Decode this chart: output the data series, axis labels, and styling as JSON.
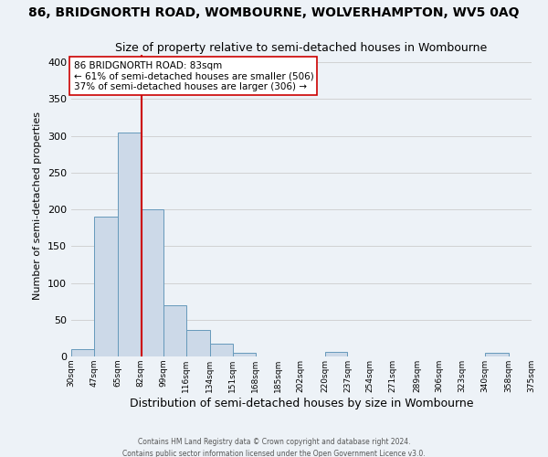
{
  "title": "86, BRIDGNORTH ROAD, WOMBOURNE, WOLVERHAMPTON, WV5 0AQ",
  "subtitle": "Size of property relative to semi-detached houses in Wombourne",
  "xlabel": "Distribution of semi-detached houses by size in Wombourne",
  "ylabel": "Number of semi-detached properties",
  "footer_line1": "Contains HM Land Registry data © Crown copyright and database right 2024.",
  "footer_line2": "Contains public sector information licensed under the Open Government Licence v3.0.",
  "bin_edges": [
    30,
    47,
    65,
    82,
    99,
    116,
    134,
    151,
    168,
    185,
    202,
    220,
    237,
    254,
    271,
    289,
    306,
    323,
    340,
    358,
    375
  ],
  "bin_counts": [
    10,
    190,
    305,
    200,
    70,
    36,
    17,
    5,
    0,
    0,
    0,
    6,
    0,
    0,
    0,
    0,
    0,
    0,
    5,
    0
  ],
  "bar_color": "#ccd9e8",
  "bar_edge_color": "#6699bb",
  "property_value": 83,
  "vline_color": "#cc0000",
  "ann_line1": "86 BRIDGNORTH ROAD: 83sqm",
  "ann_line2": "← 61% of semi-detached houses are smaller (506)",
  "ann_line3": "37% of semi-detached houses are larger (306) →",
  "annotation_box_facecolor": "white",
  "annotation_box_edgecolor": "#cc0000",
  "ylim": [
    0,
    410
  ],
  "background_color": "#edf2f7",
  "grid_color": "#cccccc",
  "title_fontsize": 10,
  "subtitle_fontsize": 9,
  "ylabel_fontsize": 8,
  "xlabel_fontsize": 9,
  "tick_fontsize": 6.5,
  "ann_fontsize": 7.5,
  "footer_fontsize": 5.5,
  "tick_labels": [
    "30sqm",
    "47sqm",
    "65sqm",
    "82sqm",
    "99sqm",
    "116sqm",
    "134sqm",
    "151sqm",
    "168sqm",
    "185sqm",
    "202sqm",
    "220sqm",
    "237sqm",
    "254sqm",
    "271sqm",
    "289sqm",
    "306sqm",
    "323sqm",
    "340sqm",
    "358sqm",
    "375sqm"
  ]
}
